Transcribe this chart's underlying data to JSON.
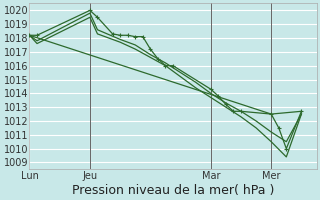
{
  "background_color": "#c8e8e8",
  "grid_color": "#ffffff",
  "line_color": "#2d6a2d",
  "title": "Pression niveau de la mer( hPa )",
  "xlabel_ticks": [
    "Lun",
    "Jeu",
    "Mar",
    "Mer"
  ],
  "xlabel_tick_positions": [
    0,
    8,
    24,
    32
  ],
  "xlim": [
    0,
    38
  ],
  "ylim": [
    1008.5,
    1020.5
  ],
  "yticks": [
    1009,
    1010,
    1011,
    1012,
    1013,
    1014,
    1015,
    1016,
    1017,
    1018,
    1019,
    1020
  ],
  "series0_x": [
    0,
    1,
    8,
    9,
    11,
    12,
    13,
    14,
    15,
    16,
    17,
    18,
    19,
    24,
    25,
    26,
    27,
    28,
    32,
    33,
    34,
    36
  ],
  "series0_y": [
    1018.2,
    1018.2,
    1020.0,
    1019.5,
    1018.3,
    1018.2,
    1018.2,
    1018.1,
    1018.1,
    1017.2,
    1016.5,
    1016.0,
    1016.0,
    1014.3,
    1013.8,
    1013.2,
    1012.7,
    1012.7,
    1012.5,
    1011.5,
    1010.0,
    1012.7
  ],
  "series1_x": [
    0,
    1,
    8,
    9,
    12,
    14,
    16,
    18,
    20,
    22,
    24,
    26,
    28,
    30,
    32,
    34,
    36
  ],
  "series1_y": [
    1018.2,
    1017.8,
    1019.8,
    1018.6,
    1017.9,
    1017.5,
    1016.8,
    1016.2,
    1015.5,
    1014.8,
    1014.0,
    1013.3,
    1012.7,
    1012.0,
    1011.2,
    1010.5,
    1012.5
  ],
  "series2_x": [
    0,
    1,
    8,
    9,
    12,
    14,
    16,
    18,
    20,
    22,
    24,
    26,
    28,
    30,
    32,
    34,
    36
  ],
  "series2_y": [
    1018.2,
    1017.6,
    1019.5,
    1018.3,
    1017.7,
    1017.2,
    1016.6,
    1016.0,
    1015.2,
    1014.4,
    1013.7,
    1013.0,
    1012.3,
    1011.5,
    1010.5,
    1009.4,
    1012.5
  ],
  "series3_x": [
    0,
    32,
    36
  ],
  "series3_y": [
    1018.2,
    1012.5,
    1012.7
  ],
  "vlines": [
    8,
    24,
    32
  ],
  "title_fontsize": 9,
  "tick_fontsize": 7,
  "lw": 0.9
}
